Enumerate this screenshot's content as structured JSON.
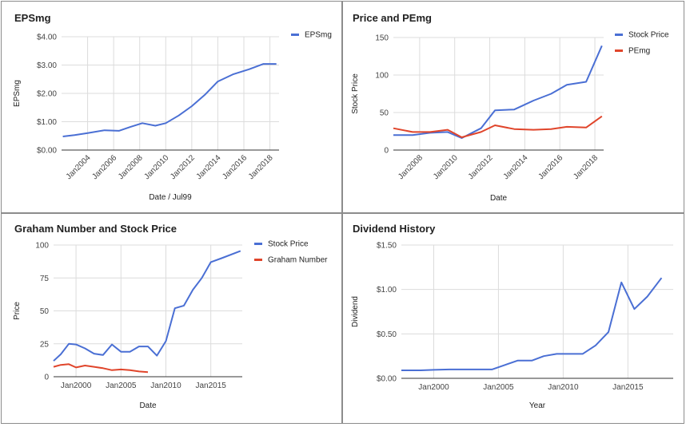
{
  "colors": {
    "blue": "#4a6fd4",
    "red": "#e0452b",
    "grid": "#dcdcdc",
    "axis": "#333333"
  },
  "chart_data": [
    {
      "type": "line",
      "title": "EPSmg",
      "xlabel": "Date / Jul99",
      "ylabel": "EPSmg",
      "x_type": "year",
      "xlim": [
        2002,
        2018.7
      ],
      "x_ticks": [
        2004,
        2006,
        2008,
        2010,
        2012,
        2014,
        2016,
        2018
      ],
      "x_tick_labels": [
        "Jan2004",
        "Jan2006",
        "Jan2008",
        "Jan2010",
        "Jan2012",
        "Jan2014",
        "Jan2016",
        "Jan2018"
      ],
      "x_labels_rotated": true,
      "y_ticks": [
        0,
        1,
        2,
        3,
        4
      ],
      "y_tick_labels": [
        "$0.00",
        "$1.00",
        "$2.00",
        "$3.00",
        "$4.00"
      ],
      "ylim": [
        0,
        4
      ],
      "grid": true,
      "legend": "right",
      "series": [
        {
          "name": "EPSmg",
          "color": "#4a6fd4",
          "x": [
            2002.1,
            2003,
            2004,
            2005.3,
            2006.4,
            2007.3,
            2008.2,
            2009.2,
            2010,
            2011,
            2012,
            2013,
            2014,
            2015.2,
            2016.4,
            2017.5,
            2018.5
          ],
          "y": [
            0.48,
            0.53,
            0.6,
            0.7,
            0.68,
            0.82,
            0.95,
            0.86,
            0.95,
            1.22,
            1.55,
            1.95,
            2.42,
            2.68,
            2.85,
            3.04,
            3.04
          ]
        }
      ]
    },
    {
      "type": "line",
      "title": "Price and PEmg",
      "xlabel": "Date",
      "ylabel": "Stock Price",
      "x_type": "year",
      "xlim": [
        2006.5,
        2018.5
      ],
      "x_ticks": [
        2008,
        2010,
        2012,
        2014,
        2016,
        2018
      ],
      "x_tick_labels": [
        "Jan2008",
        "Jan2010",
        "Jan2012",
        "Jan2014",
        "Jan2016",
        "Jan2018"
      ],
      "x_labels_rotated": true,
      "y_ticks": [
        0,
        50,
        100,
        150
      ],
      "y_tick_labels": [
        "0",
        "50",
        "100",
        "150"
      ],
      "ylim": [
        0,
        150
      ],
      "grid": true,
      "legend": "right",
      "series": [
        {
          "name": "Stock Price",
          "color": "#4a6fd4",
          "x": [
            2006.5,
            2007.6,
            2008.6,
            2009.6,
            2010.4,
            2011.5,
            2012.3,
            2013.4,
            2014.5,
            2015.5,
            2016.4,
            2017.5,
            2018.4
          ],
          "y": [
            20,
            20,
            23,
            24,
            16,
            29,
            53,
            54,
            66,
            75,
            87,
            91,
            139
          ]
        },
        {
          "name": "PEmg",
          "color": "#e0452b",
          "x": [
            2006.5,
            2007.6,
            2008.6,
            2009.6,
            2010.4,
            2011.5,
            2012.3,
            2013.4,
            2014.5,
            2015.5,
            2016.4,
            2017.5,
            2018.4
          ],
          "y": [
            29,
            24,
            24,
            27,
            17,
            24,
            33,
            28,
            27,
            28,
            31,
            30,
            45
          ]
        }
      ]
    },
    {
      "type": "line",
      "title": "Graham Number and Stock Price",
      "xlabel": "Date",
      "ylabel": "Price",
      "x_type": "year",
      "xlim": [
        1997.5,
        2018.5
      ],
      "x_ticks": [
        2000,
        2005,
        2010,
        2015
      ],
      "x_tick_labels": [
        "Jan2000",
        "Jan2005",
        "Jan2010",
        "Jan2015"
      ],
      "x_labels_rotated": false,
      "y_ticks": [
        0,
        25,
        50,
        75,
        100
      ],
      "y_tick_labels": [
        "0",
        "25",
        "50",
        "75",
        "100"
      ],
      "ylim": [
        0,
        100
      ],
      "grid": true,
      "legend": "right",
      "series": [
        {
          "name": "Stock Price",
          "color": "#4a6fd4",
          "x": [
            1997.5,
            1998.3,
            1999.2,
            2000,
            2001,
            2002,
            2003,
            2004,
            2005,
            2006,
            2007,
            2008,
            2009,
            2010,
            2011,
            2012,
            2013,
            2014,
            2015,
            2016.2,
            2018.3
          ],
          "y": [
            12,
            17,
            25,
            24.5,
            21.5,
            17.5,
            16.5,
            24.5,
            19,
            19,
            23,
            23,
            16,
            27,
            52,
            54,
            66,
            75,
            87,
            90,
            95.5
          ]
        },
        {
          "name": "Graham Number",
          "color": "#e0452b",
          "x": [
            1997.5,
            1998.3,
            1999.2,
            2000,
            2001,
            2002,
            2003,
            2004,
            2005,
            2006,
            2007,
            2008
          ],
          "y": [
            7.5,
            9,
            9.5,
            7,
            8.5,
            7.5,
            6.5,
            5,
            5.5,
            5,
            4,
            3.5
          ]
        }
      ]
    },
    {
      "type": "line",
      "title": "Dividend History",
      "xlabel": "Year",
      "ylabel": "Dividend",
      "x_type": "year",
      "xlim": [
        1997.5,
        2018.5
      ],
      "x_ticks": [
        2000,
        2005,
        2010,
        2015
      ],
      "x_tick_labels": [
        "Jan2000",
        "Jan2005",
        "Jan2010",
        "Jan2015"
      ],
      "x_labels_rotated": false,
      "y_ticks": [
        0,
        0.5,
        1,
        1.5
      ],
      "y_tick_labels": [
        "$0.00",
        "$0.50",
        "$1.00",
        "$1.50"
      ],
      "ylim": [
        0,
        1.5
      ],
      "grid": true,
      "legend": "none",
      "series": [
        {
          "color": "#4a6fd4",
          "x": [
            1997.5,
            1999,
            2000,
            2001.2,
            2004.5,
            2005.5,
            2006.5,
            2007.6,
            2008.5,
            2009.5,
            2010.5,
            2011.5,
            2012.5,
            2013.5,
            2014.5,
            2015.5,
            2016.5,
            2017.6
          ],
          "y": [
            0.09,
            0.09,
            0.095,
            0.1,
            0.1,
            0.15,
            0.2,
            0.2,
            0.25,
            0.275,
            0.275,
            0.275,
            0.37,
            0.52,
            1.08,
            0.78,
            0.92,
            1.13
          ]
        }
      ]
    }
  ]
}
